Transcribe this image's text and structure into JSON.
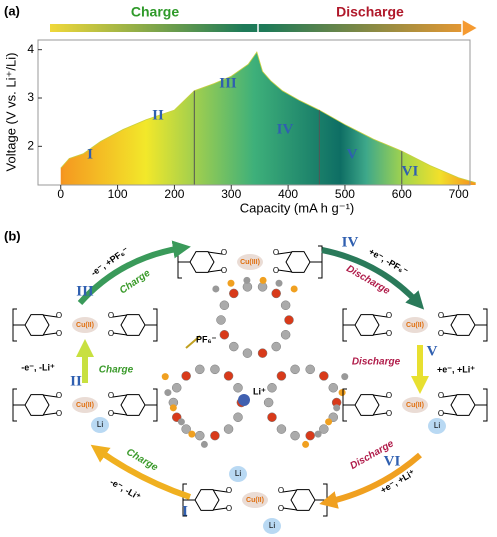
{
  "chart_data": {
    "type": "area",
    "panel": "(a)",
    "charge_label": "Charge",
    "discharge_label": "Discharge",
    "xlabel": "Capacity (mA h g⁻¹)",
    "ylabel": "Voltage (V vs. Li⁺/Li)",
    "x": [
      0,
      15,
      40,
      70,
      110,
      150,
      200,
      235,
      270,
      300,
      330,
      345,
      355,
      370,
      390,
      420,
      455,
      500,
      550,
      600,
      650,
      700,
      730
    ],
    "values": [
      1.55,
      1.75,
      1.85,
      2.1,
      2.35,
      2.55,
      2.75,
      3.15,
      3.3,
      3.45,
      3.7,
      3.95,
      3.55,
      3.35,
      3.15,
      2.95,
      2.75,
      2.45,
      2.15,
      1.9,
      1.6,
      1.35,
      1.25
    ],
    "dividers": [
      235,
      455,
      600
    ],
    "annotations": [
      "I",
      "II",
      "III",
      "IV",
      "V",
      "VI"
    ],
    "xlim": [
      -40,
      720
    ],
    "ylim": [
      1.2,
      4.2
    ],
    "xticks": [
      0,
      100,
      200,
      300,
      400,
      500,
      600,
      700
    ],
    "yticks": [
      2,
      3,
      4
    ]
  },
  "diagram": {
    "panel": "(b)",
    "atom_O": "O",
    "anion": "PF₆⁻",
    "cation": "Li⁺",
    "structures": [
      {
        "metal": "Cu(III)",
        "li": []
      },
      {
        "metal": "Cu(II)",
        "li": []
      },
      {
        "metal": "Cu(II)",
        "li": [
          "Li"
        ]
      },
      {
        "metal": "Cu(II)",
        "li": [
          "Li",
          "Li"
        ]
      },
      {
        "metal": "Cu(II)",
        "li": [
          "Li"
        ]
      },
      {
        "metal": "Cu(II)",
        "li": []
      }
    ],
    "steps": [
      {
        "numeral": "I",
        "direction": "Charge",
        "reaction": "-e⁻, -Li⁺"
      },
      {
        "numeral": "II",
        "direction": "Charge",
        "reaction": "-e⁻, -Li⁺"
      },
      {
        "numeral": "III",
        "direction": "Charge",
        "reaction": "-e⁻, +PF₆⁻"
      },
      {
        "numeral": "IV",
        "direction": "Discharge",
        "reaction": "+e⁻, -PF₆⁻"
      },
      {
        "numeral": "V",
        "direction": "Discharge",
        "reaction": "+e⁻, +Li⁺"
      },
      {
        "numeral": "VI",
        "direction": "Discharge",
        "reaction": "+e⁻, +Li⁺"
      }
    ]
  }
}
